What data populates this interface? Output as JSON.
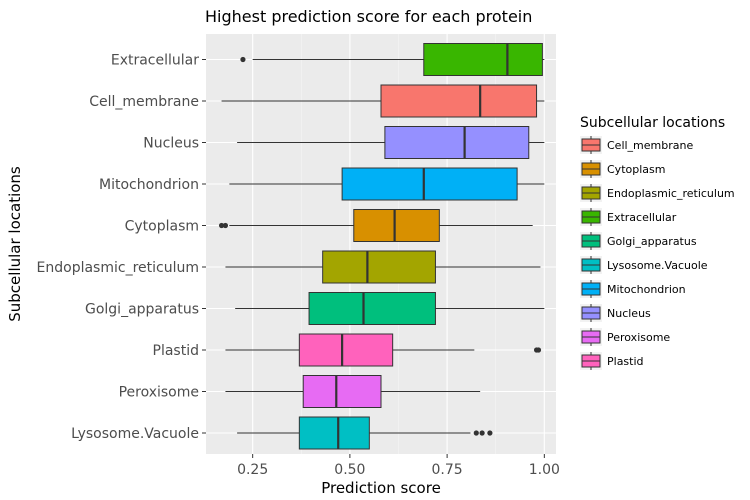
{
  "chart_data": {
    "type": "boxplot",
    "title": "Highest prediction score for each protein",
    "xlabel": "Prediction score",
    "ylabel": "Subcellular locations",
    "xlim": [
      0.13,
      1.03
    ],
    "x_ticks": [
      0.25,
      0.5,
      0.75,
      1.0
    ],
    "x_tick_labels": [
      "0.25",
      "0.50",
      "0.75",
      "1.00"
    ],
    "grid": true,
    "legend_title": "Subcellular locations",
    "legend_position": "right",
    "legend_order": [
      "Cell_membrane",
      "Cytoplasm",
      "Endoplasmic_reticulum",
      "Extracellular",
      "Golgi_apparatus",
      "Lysosome.Vacuole",
      "Mitochondrion",
      "Nucleus",
      "Peroxisome",
      "Plastid"
    ],
    "categories_top_to_bottom": [
      "Extracellular",
      "Cell_membrane",
      "Nucleus",
      "Mitochondrion",
      "Cytoplasm",
      "Endoplasmic_reticulum",
      "Golgi_apparatus",
      "Plastid",
      "Peroxisome",
      "Lysosome.Vacuole"
    ],
    "colors": {
      "Cell_membrane": "#F8766D",
      "Cytoplasm": "#D89000",
      "Endoplasmic_reticulum": "#A3A500",
      "Extracellular": "#39B600",
      "Golgi_apparatus": "#00BF7D",
      "Lysosome.Vacuole": "#00BFC4",
      "Mitochondrion": "#00B0F6",
      "Nucleus": "#9590FF",
      "Peroxisome": "#E76BF3",
      "Plastid": "#FF62BC"
    },
    "boxes": {
      "Extracellular": {
        "min": 0.25,
        "q1": 0.69,
        "median": 0.905,
        "q3": 0.995,
        "max": 1.0,
        "outliers": [
          0.225
        ]
      },
      "Cell_membrane": {
        "min": 0.17,
        "q1": 0.58,
        "median": 0.835,
        "q3": 0.98,
        "max": 1.0,
        "outliers": []
      },
      "Nucleus": {
        "min": 0.21,
        "q1": 0.59,
        "median": 0.795,
        "q3": 0.96,
        "max": 1.0,
        "outliers": []
      },
      "Mitochondrion": {
        "min": 0.19,
        "q1": 0.48,
        "median": 0.69,
        "q3": 0.93,
        "max": 1.0,
        "outliers": []
      },
      "Cytoplasm": {
        "min": 0.19,
        "q1": 0.51,
        "median": 0.615,
        "q3": 0.73,
        "max": 0.97,
        "outliers": [
          0.17,
          0.18
        ]
      },
      "Endoplasmic_reticulum": {
        "min": 0.18,
        "q1": 0.43,
        "median": 0.545,
        "q3": 0.72,
        "max": 0.99,
        "outliers": []
      },
      "Golgi_apparatus": {
        "min": 0.205,
        "q1": 0.395,
        "median": 0.535,
        "q3": 0.72,
        "max": 1.0,
        "outliers": []
      },
      "Plastid": {
        "min": 0.18,
        "q1": 0.37,
        "median": 0.48,
        "q3": 0.61,
        "max": 0.82,
        "outliers": [
          0.98,
          0.985
        ]
      },
      "Peroxisome": {
        "min": 0.18,
        "q1": 0.38,
        "median": 0.465,
        "q3": 0.58,
        "max": 0.835,
        "outliers": []
      },
      "Lysosome.Vacuole": {
        "min": 0.21,
        "q1": 0.37,
        "median": 0.47,
        "q3": 0.55,
        "max": 0.81,
        "outliers": [
          0.825,
          0.84,
          0.86
        ]
      }
    }
  }
}
